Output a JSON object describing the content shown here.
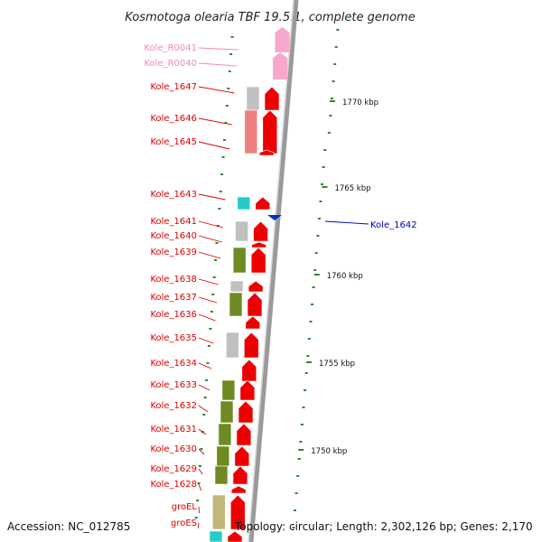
{
  "title": "Kosmotoga olearia TBF 19.5.1, complete genome",
  "footer": {
    "accession": "Accession: NC_012785",
    "topology": "Topology: circular; Length: 2,302,126 bp; Genes: 2,170"
  },
  "colors": {
    "cds_forward": "#ee0000",
    "label_red": "#dd0000",
    "label_pink": "#ee88bb",
    "label_blue": "#0000bb",
    "rna_pink": "#f7a8cc",
    "cog_gray": "#c0c0c0",
    "cog_green": "#6e8a22",
    "cog_cyan": "#22cccc",
    "cog_salmon": "#ee8080",
    "cog_khaki": "#c2b77a",
    "tick_green": "#2d8a2d",
    "backbone": "#9a9a9a"
  },
  "scale_labels": [
    "1770 kbp",
    "1765 kbp",
    "1760 kbp",
    "1755 kbp",
    "1750 kbp"
  ],
  "gene_labels": [
    {
      "text": "Kole_R0041",
      "color": "pink"
    },
    {
      "text": "Kole_R0040",
      "color": "pink"
    },
    {
      "text": "Kole_1647",
      "color": "red"
    },
    {
      "text": "Kole_1646",
      "color": "red"
    },
    {
      "text": "Kole_1645",
      "color": "red"
    },
    {
      "text": "Kole_1643",
      "color": "red"
    },
    {
      "text": "Kole_1641",
      "color": "red"
    },
    {
      "text": "Kole_1640",
      "color": "red"
    },
    {
      "text": "Kole_1639",
      "color": "red"
    },
    {
      "text": "Kole_1638",
      "color": "red"
    },
    {
      "text": "Kole_1637",
      "color": "red"
    },
    {
      "text": "Kole_1636",
      "color": "red"
    },
    {
      "text": "Kole_1635",
      "color": "red"
    },
    {
      "text": "Kole_1634",
      "color": "red"
    },
    {
      "text": "Kole_1633",
      "color": "red"
    },
    {
      "text": "Kole_1632",
      "color": "red"
    },
    {
      "text": "Kole_1631",
      "color": "red"
    },
    {
      "text": "Kole_1630",
      "color": "red"
    },
    {
      "text": "Kole_1629",
      "color": "red"
    },
    {
      "text": "Kole_1628",
      "color": "red"
    },
    {
      "text": "groEL",
      "color": "red"
    },
    {
      "text": "groES",
      "color": "red"
    },
    {
      "text": "Kole_1642",
      "color": "blue"
    }
  ]
}
